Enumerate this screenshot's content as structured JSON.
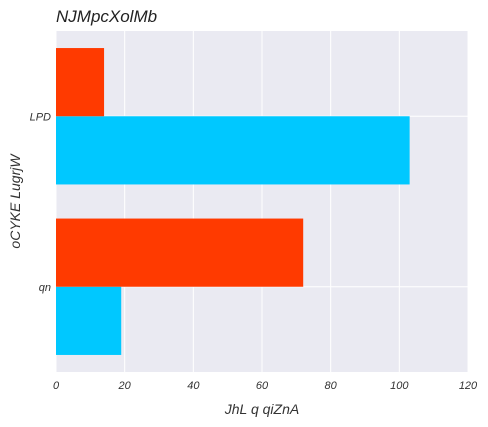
{
  "chart_data": {
    "type": "bar",
    "orientation": "horizontal",
    "title": "NJMpcXolMb",
    "xlabel": "JhL q qiZnA",
    "ylabel": "oCYKE LugrjW",
    "categories": [
      "qn",
      "LPD"
    ],
    "series": [
      {
        "values": [
          19,
          103
        ],
        "color": "#00c8ff"
      },
      {
        "values": [
          72,
          14
        ],
        "color": "#ff3a00"
      }
    ],
    "xlim": [
      0,
      120
    ],
    "xticks": [
      0,
      20,
      40,
      60,
      80,
      100,
      120
    ],
    "grid": true,
    "background_color": "#eaeaf2",
    "grid_color": "#ffffff"
  }
}
